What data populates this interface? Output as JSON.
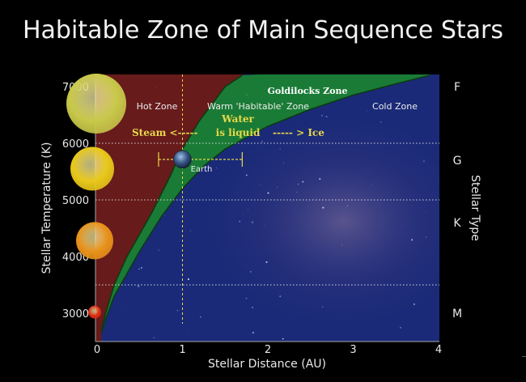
{
  "title": "Habitable Zone of Main Sequence Stars",
  "chart_data": {
    "type": "area",
    "title": "Habitable Zone of Main Sequence Stars",
    "xlabel": "Stellar Distance (AU)",
    "ylabel": "Stellar Temperature (K)",
    "right_label": "Stellar Type",
    "xlim": [
      0,
      4
    ],
    "ylim": [
      2600,
      7200
    ],
    "x_ticks": [
      "0",
      "1",
      "2",
      "3",
      "4"
    ],
    "y_ticks": [
      "3000",
      "4000",
      "5000",
      "6000",
      "7000"
    ],
    "stellar_types": [
      {
        "label": "F",
        "temp": 7000
      },
      {
        "label": "G",
        "temp": 5700
      },
      {
        "label": "K",
        "temp": 4600
      },
      {
        "label": "M",
        "temp": 3000
      }
    ],
    "hz_inner_boundary": {
      "x": [
        0.05,
        0.1,
        0.2,
        0.35,
        0.5,
        0.65,
        0.75,
        0.85,
        1.0,
        1.2,
        1.5,
        1.7
      ],
      "y": [
        2700,
        3000,
        3500,
        4000,
        4400,
        4800,
        5100,
        5400,
        5900,
        6400,
        7000,
        7200
      ]
    },
    "hz_outer_boundary": {
      "x": [
        0.05,
        0.1,
        0.2,
        0.35,
        0.5,
        0.75,
        1.0,
        1.25,
        1.5,
        2.0,
        2.5,
        3.0,
        3.5,
        3.9
      ],
      "y": [
        2650,
        2900,
        3300,
        3700,
        4100,
        4700,
        5200,
        5600,
        5900,
        6300,
        6600,
        6850,
        7050,
        7200
      ]
    },
    "earth": {
      "label": "Earth",
      "x": 1.0,
      "temp": 5800
    },
    "earth_range_x": [
      0.72,
      1.7
    ],
    "gridlines_y": [
      6000,
      5000,
      3500
    ],
    "gridline_x": 1.0,
    "stars": [
      {
        "temp": 6700,
        "color": "#c8c84a"
      },
      {
        "temp": 5550,
        "color": "#e8c81a"
      },
      {
        "temp": 4280,
        "color": "#e8921a"
      },
      {
        "temp": 3020,
        "color": "#dd2a10"
      }
    ],
    "annotations": {
      "hot_zone": "Hot Zone",
      "warm_zone": "Warm 'Habitable' Zone",
      "cold_zone": "Cold Zone",
      "goldilocks": "Goldilocks  Zone",
      "steam": "Steam <-----",
      "water_line1": "Water",
      "water_line2": "is liquid",
      "ice": "----- >  Ice"
    },
    "colors": {
      "hot": "#6e1a14",
      "hz": "#1b8a2a",
      "space": "#1a2a78",
      "guide": "#e8d84a"
    }
  }
}
